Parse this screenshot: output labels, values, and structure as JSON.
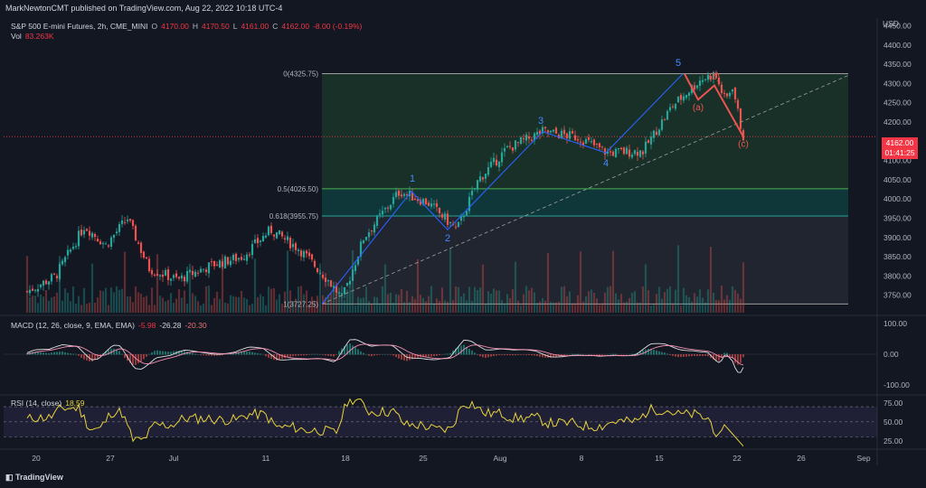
{
  "credit": "MarkNewtonCMT published on TradingView.com, Aug 22, 2022 10:18 UTC-4",
  "brand": "TradingView",
  "header": {
    "symbol": "S&P 500 E-mini Futures, 2h, CME_MINI",
    "o_label": "O",
    "o": "4170.00",
    "h_label": "H",
    "h": "4170.50",
    "l_label": "L",
    "l": "4161.00",
    "c_label": "C",
    "c": "4162.00",
    "chg": "-8.00 (-0.19%)",
    "vol_label": "Vol",
    "vol": "83.263K"
  },
  "macd_header": {
    "label": "MACD (12, 26, close, 9, EMA, EMA)",
    "v1": "-5.98",
    "v2": "-26.28",
    "v3": "-20.30"
  },
  "rsi_header": {
    "label": "RSI (14, close)",
    "v1": "18.59"
  },
  "price_tag": {
    "price": "4162.00",
    "timer": "01:41:25"
  },
  "currency": "USD",
  "colors": {
    "bg": "#131722",
    "up": "#26a69a",
    "down": "#ef5350",
    "wave": "#2962ff",
    "corr": "#ef5350",
    "rsi": "#e8d33d",
    "macd": "#e0e0e0",
    "signal": "#f48fb1",
    "green_zone": "#1b3a2a",
    "teal_zone": "#0f3b3d",
    "grey_zone": "#2a2e39"
  },
  "chart_data": {
    "type": "candlestick",
    "y_axis_ticks": [
      4450,
      4400,
      4350,
      4300,
      4250,
      4200,
      4150,
      4100,
      4050,
      4000,
      3950,
      3900,
      3850,
      3800,
      3750
    ],
    "x_axis_ticks": [
      "20",
      "27",
      "Jul",
      "11",
      "18",
      "25",
      "Aug",
      "8",
      "15",
      "22",
      "26",
      "Sep"
    ],
    "fib_levels": [
      {
        "label": "0(4325.75)",
        "value": 4325.75
      },
      {
        "label": "0.5(4026.50)",
        "value": 4026.5
      },
      {
        "label": "0.618(3955.75)",
        "value": 3955.75
      },
      {
        "label": "1(3727.25)",
        "value": 3727.25
      }
    ],
    "wave_labels": [
      {
        "text": "1",
        "t": 0.52,
        "v": 4035
      },
      {
        "text": "2",
        "t": 0.6,
        "v": 3895
      },
      {
        "text": "3",
        "t": 0.72,
        "v": 4190
      },
      {
        "text": "4",
        "t": 0.86,
        "v": 4082
      },
      {
        "text": "5",
        "t": 0.94,
        "v": 4345
      }
    ],
    "corrective_labels": [
      {
        "text": "(a)",
        "t": 0.96,
        "v": 4230
      },
      {
        "text": "(b)",
        "t": 0.975,
        "v": 4290
      },
      {
        "text": "(c)",
        "t": 1.0,
        "v": 4140
      }
    ],
    "price_path": [
      {
        "t": 0.0,
        "v": 3760
      },
      {
        "t": 0.04,
        "v": 3800
      },
      {
        "t": 0.08,
        "v": 3930
      },
      {
        "t": 0.11,
        "v": 3880
      },
      {
        "t": 0.14,
        "v": 3950
      },
      {
        "t": 0.17,
        "v": 3820
      },
      {
        "t": 0.21,
        "v": 3790
      },
      {
        "t": 0.26,
        "v": 3830
      },
      {
        "t": 0.3,
        "v": 3850
      },
      {
        "t": 0.34,
        "v": 3920
      },
      {
        "t": 0.38,
        "v": 3870
      },
      {
        "t": 0.42,
        "v": 3790
      },
      {
        "t": 0.44,
        "v": 3740
      },
      {
        "t": 0.47,
        "v": 3900
      },
      {
        "t": 0.52,
        "v": 4020
      },
      {
        "t": 0.56,
        "v": 3990
      },
      {
        "t": 0.6,
        "v": 3920
      },
      {
        "t": 0.63,
        "v": 4050
      },
      {
        "t": 0.67,
        "v": 4130
      },
      {
        "t": 0.72,
        "v": 4175
      },
      {
        "t": 0.77,
        "v": 4160
      },
      {
        "t": 0.81,
        "v": 4120
      },
      {
        "t": 0.86,
        "v": 4125
      },
      {
        "t": 0.9,
        "v": 4240
      },
      {
        "t": 0.94,
        "v": 4310
      },
      {
        "t": 0.96,
        "v": 4325
      },
      {
        "t": 0.975,
        "v": 4255
      },
      {
        "t": 0.985,
        "v": 4295
      },
      {
        "t": 0.995,
        "v": 4200
      },
      {
        "t": 1.0,
        "v": 4162
      }
    ],
    "macd_ticks": [
      100,
      0,
      -100
    ],
    "rsi_ticks": [
      75,
      50,
      25
    ],
    "last_price": 4162.0
  }
}
